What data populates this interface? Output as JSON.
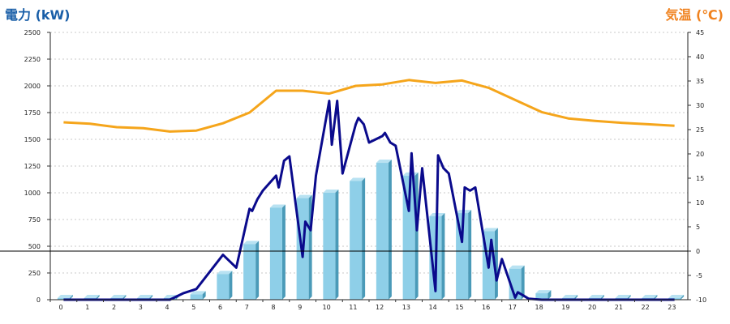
{
  "chart_data": {
    "type": "bar",
    "left_axis_title": "電力 (kW)",
    "right_axis_title": "気温 (℃)",
    "left_title_color": "#1a5fa8",
    "right_title_color": "#f0821e",
    "bar_color": "#8ecfe8",
    "bar_side_color": "#4a9ab8",
    "bar_top_color": "#b8e2f2",
    "power_line_color": "#0a0a8c",
    "temp_line_color": "#f5a51b",
    "grid": true,
    "x_categories": [
      "0",
      "1",
      "2",
      "3",
      "4",
      "5",
      "6",
      "7",
      "8",
      "9",
      "10",
      "11",
      "12",
      "13",
      "14",
      "15",
      "16",
      "17",
      "18",
      "19",
      "20",
      "21",
      "22",
      "23"
    ],
    "y_left_range": [
      0,
      2500
    ],
    "y_left_ticks": [
      "0",
      "250",
      "500",
      "750",
      "1000",
      "1250",
      "1500",
      "1750",
      "2000",
      "2250",
      "2500"
    ],
    "y_right_range": [
      -10,
      45
    ],
    "y_right_ticks": [
      "-10",
      "-5",
      "0",
      "5",
      "10",
      "15",
      "20",
      "25",
      "30",
      "35",
      "40",
      "45"
    ],
    "series": [
      {
        "type": "bar",
        "axis": "left",
        "values": [
          10,
          10,
          10,
          10,
          10,
          50,
          240,
          520,
          860,
          950,
          1000,
          1110,
          1280,
          1160,
          780,
          810,
          640,
          290,
          60,
          10,
          10,
          10,
          10,
          10
        ]
      },
      {
        "type": "line",
        "axis": "left",
        "x": [
          0,
          1,
          2,
          3,
          4,
          4.5,
          5,
          5.5,
          6,
          6.5,
          7,
          7.1,
          7.3,
          7.5,
          8,
          8.1,
          8.3,
          8.5,
          9,
          9.1,
          9.3,
          9.5,
          10,
          10.1,
          10.3,
          10.5,
          11,
          11.1,
          11.3,
          11.5,
          12,
          12.1,
          12.3,
          12.5,
          13,
          13.1,
          13.3,
          13.5,
          14,
          14.1,
          14.3,
          14.5,
          15,
          15.1,
          15.3,
          15.5,
          16,
          16.1,
          16.3,
          16.5,
          17,
          17.1,
          17.3,
          17.5,
          18,
          19,
          20,
          21,
          22,
          23
        ],
        "y": [
          0,
          0,
          0,
          0,
          0,
          60,
          100,
          260,
          420,
          300,
          850,
          830,
          940,
          1020,
          1160,
          1050,
          1300,
          1340,
          400,
          730,
          650,
          1160,
          1860,
          1450,
          1860,
          1180,
          1640,
          1700,
          1640,
          1470,
          1530,
          1560,
          1470,
          1440,
          830,
          1370,
          650,
          1230,
          80,
          1350,
          1230,
          1180,
          540,
          1050,
          1020,
          1050,
          300,
          560,
          180,
          380,
          20,
          70,
          40,
          10,
          0,
          0,
          0,
          0,
          0,
          0
        ]
      },
      {
        "type": "line",
        "axis": "right",
        "x": [
          0,
          1,
          2,
          3,
          4,
          5,
          6,
          7,
          8,
          9,
          10,
          11,
          12,
          13,
          14,
          15,
          16,
          17,
          18,
          19,
          20,
          21,
          22,
          23
        ],
        "y": [
          26.5,
          26.2,
          25.5,
          25.3,
          24.6,
          24.8,
          26.3,
          28.5,
          33.0,
          33.0,
          32.4,
          34.0,
          34.3,
          35.2,
          34.6,
          35.1,
          33.6,
          31.1,
          28.6,
          27.3,
          26.8,
          26.4,
          26.1,
          25.8
        ]
      }
    ]
  }
}
